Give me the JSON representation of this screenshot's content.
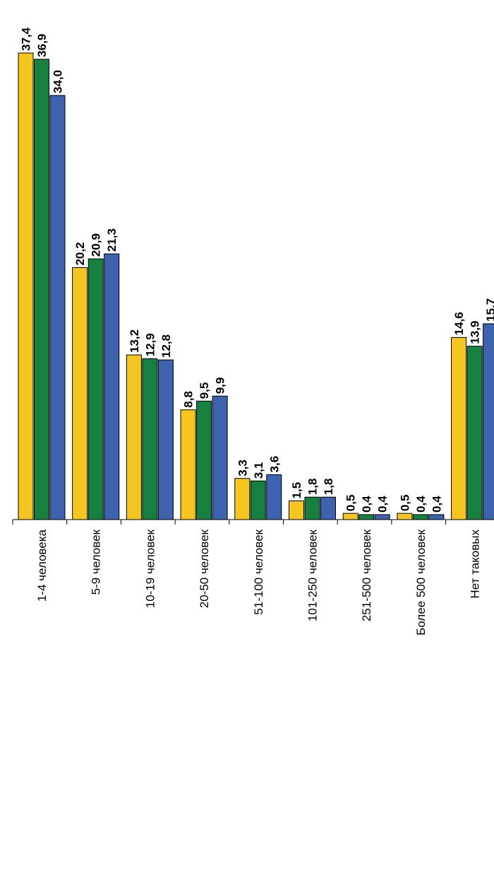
{
  "chart_data": {
    "type": "bar",
    "orientation": "vertical",
    "categories": [
      "1-4 человека",
      "5-9 человек",
      "10-19 человек",
      "20-50 человек",
      "51-100 человек",
      "101-250 человек",
      "251-500 человек",
      "Более 500 человек",
      "Нет таковых"
    ],
    "series": [
      {
        "color": "#f5c522",
        "values": [
          37.4,
          20.2,
          13.2,
          8.8,
          3.3,
          1.5,
          0.5,
          0.5,
          14.6
        ],
        "labels": [
          "37,4",
          "20,2",
          "13,2",
          "8,8",
          "3,3",
          "1,5",
          "0,5",
          "0,5",
          "14,6"
        ]
      },
      {
        "color": "#178040",
        "values": [
          36.9,
          20.9,
          12.9,
          9.5,
          3.1,
          1.8,
          0.4,
          0.4,
          13.9
        ],
        "labels": [
          "36,9",
          "20,9",
          "12,9",
          "9,5",
          "3,1",
          "1,8",
          "0,4",
          "0,4",
          "13,9"
        ]
      },
      {
        "color": "#3f62ae",
        "values": [
          34.0,
          21.3,
          12.8,
          9.9,
          3.6,
          1.8,
          0.4,
          0.4,
          15.7
        ],
        "labels": [
          "34,0",
          "21,3",
          "12,8",
          "9,9",
          "3,6",
          "1,8",
          "0,4",
          "0,4",
          "15,7"
        ]
      }
    ],
    "ylim": [
      0,
      37.4
    ],
    "grid": false,
    "legend": "none",
    "category_label_orientation": "rotated",
    "value_label_orientation": "rotated"
  }
}
